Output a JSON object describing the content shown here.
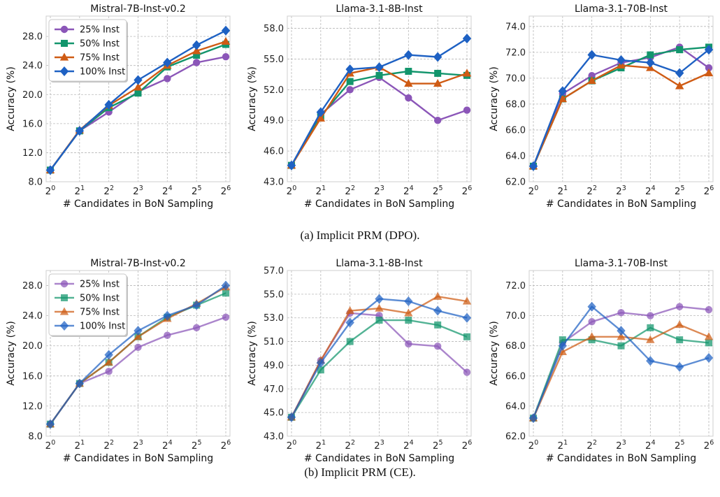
{
  "captions": [
    "(a) Implicit PRM (DPO).",
    "(b) Implicit PRM (CE)."
  ],
  "colors": {
    "25% Inst": "#8b56b8",
    "50% Inst": "#12956c",
    "75% Inst": "#cf5b14",
    "100% Inst": "#1e61c3"
  },
  "chart_data": [
    {
      "type": "line",
      "row": "dpo",
      "title": "Mistral-7B-Inst-v0.2",
      "xlabel": "# Candidates in BoN Sampling",
      "ylabel": "Accuracy (%)",
      "x": [
        "2^0",
        "2^1",
        "2^2",
        "2^3",
        "2^4",
        "2^5",
        "2^6"
      ],
      "ylim": [
        8.0,
        30.8
      ],
      "yticks": [
        "8.0",
        "12.0",
        "16.0",
        "20.0",
        "24.0",
        "28.0"
      ],
      "grid": true,
      "legend": "top-left",
      "series": [
        {
          "name": "25% Inst",
          "values": [
            9.6,
            15.0,
            17.6,
            20.4,
            22.2,
            24.4,
            25.2
          ]
        },
        {
          "name": "50% Inst",
          "values": [
            9.6,
            15.0,
            18.2,
            20.2,
            23.8,
            25.4,
            26.9
          ]
        },
        {
          "name": "75% Inst",
          "values": [
            9.6,
            15.1,
            18.5,
            21.0,
            24.0,
            26.0,
            27.3
          ]
        },
        {
          "name": "100% Inst",
          "values": [
            9.6,
            15.0,
            18.6,
            22.0,
            24.4,
            26.8,
            28.8
          ]
        }
      ]
    },
    {
      "type": "line",
      "row": "dpo",
      "title": "Llama-3.1-8B-Inst",
      "xlabel": "# Candidates in BoN Sampling",
      "ylabel": "Accuracy (%)",
      "x": [
        "2^0",
        "2^1",
        "2^2",
        "2^3",
        "2^4",
        "2^5",
        "2^6"
      ],
      "ylim": [
        43.0,
        59.2
      ],
      "yticks": [
        "43.0",
        "46.0",
        "49.0",
        "52.0",
        "55.0",
        "58.0"
      ],
      "grid": true,
      "series": [
        {
          "name": "25% Inst",
          "values": [
            44.6,
            49.6,
            52.0,
            53.2,
            51.2,
            49.0,
            50.0
          ]
        },
        {
          "name": "50% Inst",
          "values": [
            44.6,
            49.4,
            52.8,
            53.4,
            53.8,
            53.6,
            53.4
          ]
        },
        {
          "name": "75% Inst",
          "values": [
            44.6,
            49.2,
            53.6,
            54.2,
            52.6,
            52.6,
            53.6
          ]
        },
        {
          "name": "100% Inst",
          "values": [
            44.6,
            49.8,
            54.0,
            54.2,
            55.4,
            55.2,
            57.0
          ]
        }
      ]
    },
    {
      "type": "line",
      "row": "dpo",
      "title": "Llama-3.1-70B-Inst",
      "xlabel": "# Candidates in BoN Sampling",
      "ylabel": "Accuracy (%)",
      "x": [
        "2^0",
        "2^1",
        "2^2",
        "2^3",
        "2^4",
        "2^5",
        "2^6"
      ],
      "ylim": [
        62.0,
        74.8
      ],
      "yticks": [
        "62.0",
        "64.0",
        "66.0",
        "68.0",
        "70.0",
        "72.0",
        "74.0"
      ],
      "grid": true,
      "series": [
        {
          "name": "25% Inst",
          "values": [
            63.2,
            68.8,
            70.2,
            71.2,
            71.6,
            72.4,
            70.8
          ]
        },
        {
          "name": "50% Inst",
          "values": [
            63.2,
            68.4,
            69.8,
            70.8,
            71.8,
            72.2,
            72.4
          ]
        },
        {
          "name": "75% Inst",
          "values": [
            63.2,
            68.4,
            69.8,
            71.0,
            70.8,
            69.4,
            70.4
          ]
        },
        {
          "name": "100% Inst",
          "values": [
            63.2,
            69.0,
            71.8,
            71.4,
            71.2,
            70.4,
            72.2
          ]
        }
      ]
    },
    {
      "type": "line",
      "row": "ce",
      "title": "Mistral-7B-Inst-v0.2",
      "xlabel": "# Candidates in BoN Sampling",
      "ylabel": "Accuracy (%)",
      "x": [
        "2^0",
        "2^1",
        "2^2",
        "2^3",
        "2^4",
        "2^5",
        "2^6"
      ],
      "ylim": [
        8.0,
        30.0
      ],
      "yticks": [
        "8.0",
        "12.0",
        "16.0",
        "20.0",
        "24.0",
        "28.0"
      ],
      "grid": true,
      "legend": "top-left",
      "series": [
        {
          "name": "25% Inst",
          "values": [
            9.6,
            15.0,
            16.6,
            19.8,
            21.4,
            22.4,
            23.8
          ]
        },
        {
          "name": "50% Inst",
          "values": [
            9.6,
            15.0,
            17.8,
            21.2,
            23.8,
            25.4,
            27.0
          ]
        },
        {
          "name": "75% Inst",
          "values": [
            9.6,
            15.0,
            17.8,
            21.2,
            23.6,
            25.6,
            27.8
          ]
        },
        {
          "name": "100% Inst",
          "values": [
            9.6,
            15.0,
            18.8,
            22.0,
            24.0,
            25.4,
            28.0
          ]
        }
      ]
    },
    {
      "type": "line",
      "row": "ce",
      "title": "Llama-3.1-8B-Inst",
      "xlabel": "# Candidates in BoN Sampling",
      "ylabel": "Accuracy (%)",
      "x": [
        "2^0",
        "2^1",
        "2^2",
        "2^3",
        "2^4",
        "2^5",
        "2^6"
      ],
      "ylim": [
        43.0,
        57.0
      ],
      "yticks": [
        "43.0",
        "45.0",
        "47.0",
        "49.0",
        "51.0",
        "53.0",
        "55.0",
        "57.0"
      ],
      "grid": true,
      "series": [
        {
          "name": "25% Inst",
          "values": [
            44.6,
            49.4,
            53.4,
            53.2,
            50.8,
            50.6,
            48.4
          ]
        },
        {
          "name": "50% Inst",
          "values": [
            44.6,
            48.6,
            51.0,
            52.8,
            52.8,
            52.4,
            51.4
          ]
        },
        {
          "name": "75% Inst",
          "values": [
            44.6,
            49.4,
            53.6,
            53.8,
            53.4,
            54.8,
            54.4
          ]
        },
        {
          "name": "100% Inst",
          "values": [
            44.6,
            49.2,
            52.6,
            54.6,
            54.4,
            53.6,
            53.0
          ]
        }
      ]
    },
    {
      "type": "line",
      "row": "ce",
      "title": "Llama-3.1-70B-Inst",
      "xlabel": "# Candidates in BoN Sampling",
      "ylabel": "Accuracy (%)",
      "x": [
        "2^0",
        "2^1",
        "2^2",
        "2^3",
        "2^4",
        "2^5",
        "2^6"
      ],
      "ylim": [
        62.0,
        73.0
      ],
      "yticks": [
        "62.0",
        "64.0",
        "66.0",
        "68.0",
        "70.0",
        "72.0"
      ],
      "grid": true,
      "series": [
        {
          "name": "25% Inst",
          "values": [
            63.2,
            68.2,
            69.6,
            70.2,
            70.0,
            70.6,
            70.4
          ]
        },
        {
          "name": "50% Inst",
          "values": [
            63.2,
            68.4,
            68.4,
            68.0,
            69.2,
            68.4,
            68.2
          ]
        },
        {
          "name": "75% Inst",
          "values": [
            63.2,
            67.6,
            68.6,
            68.6,
            68.4,
            69.4,
            68.6
          ]
        },
        {
          "name": "100% Inst",
          "values": [
            63.2,
            68.0,
            70.6,
            69.0,
            67.0,
            66.6,
            67.2
          ]
        }
      ]
    }
  ]
}
